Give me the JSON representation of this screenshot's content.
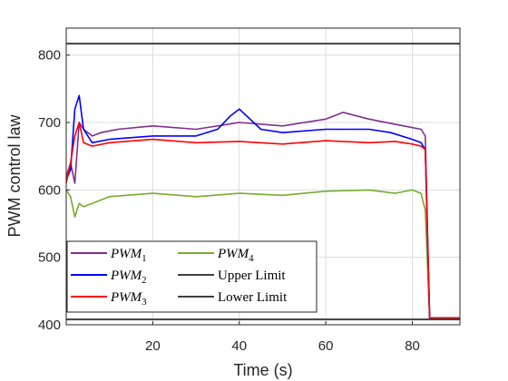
{
  "chart_data": {
    "type": "line",
    "xlabel": "Time (s)",
    "ylabel": "PWM control law",
    "xlim": [
      0,
      91
    ],
    "ylim": [
      400,
      840
    ],
    "xticks": [
      20,
      40,
      60,
      80
    ],
    "yticks": [
      400,
      500,
      600,
      700,
      800
    ],
    "grid": true,
    "legend_placement": "lower-left",
    "legend_columns": 2,
    "series": [
      {
        "name": "PWM",
        "subscript": "1",
        "color": "#7E2F8E",
        "x": [
          0,
          1,
          2,
          3,
          4,
          6,
          8,
          12,
          20,
          30,
          40,
          50,
          60,
          64,
          70,
          78,
          82,
          83,
          84,
          91
        ],
        "y": [
          620,
          640,
          610,
          700,
          690,
          680,
          685,
          690,
          695,
          690,
          700,
          695,
          705,
          715,
          705,
          695,
          690,
          680,
          410,
          410
        ]
      },
      {
        "name": "PWM",
        "subscript": "2",
        "color": "#0000FF",
        "x": [
          0,
          1,
          2,
          3,
          4,
          6,
          10,
          20,
          30,
          35,
          38,
          40,
          45,
          50,
          60,
          70,
          75,
          80,
          82,
          83,
          84,
          91
        ],
        "y": [
          615,
          630,
          720,
          740,
          690,
          670,
          675,
          680,
          680,
          690,
          710,
          720,
          690,
          685,
          690,
          690,
          685,
          675,
          670,
          660,
          410,
          410
        ]
      },
      {
        "name": "PWM",
        "subscript": "3",
        "color": "#FF0000",
        "x": [
          0,
          1,
          2,
          3,
          4,
          6,
          10,
          20,
          30,
          40,
          50,
          60,
          70,
          76,
          80,
          82,
          83,
          84,
          91
        ],
        "y": [
          610,
          640,
          680,
          700,
          670,
          665,
          670,
          675,
          670,
          672,
          668,
          673,
          670,
          672,
          668,
          665,
          660,
          410,
          410
        ]
      },
      {
        "name": "PWM",
        "subscript": "4",
        "color": "#77AC30",
        "x": [
          0,
          1,
          2,
          3,
          4,
          6,
          10,
          20,
          30,
          40,
          50,
          60,
          70,
          76,
          80,
          82,
          83,
          84,
          91
        ],
        "y": [
          600,
          590,
          560,
          580,
          575,
          580,
          590,
          595,
          590,
          595,
          592,
          598,
          600,
          595,
          600,
          595,
          570,
          410,
          410
        ]
      },
      {
        "name": "Upper Limit",
        "color": "#404040",
        "x": [
          0,
          91
        ],
        "y": [
          817,
          817
        ]
      },
      {
        "name": "Lower Limit",
        "color": "#404040",
        "x": [
          0,
          91
        ],
        "y": [
          408,
          408
        ]
      }
    ]
  }
}
